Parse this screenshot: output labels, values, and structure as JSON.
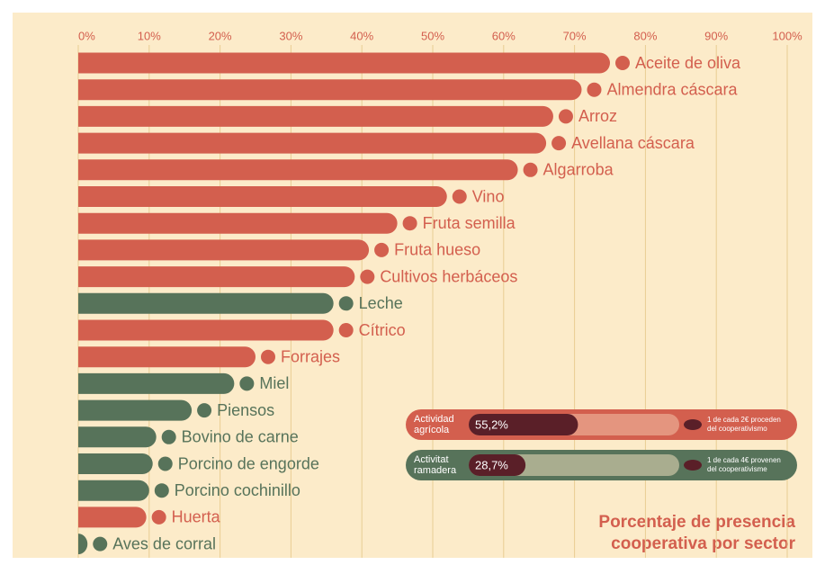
{
  "chart_data": {
    "type": "barh",
    "title_lines": [
      "Porcentaje de presencia",
      "cooperativa por sector"
    ],
    "categories": [
      "Aceite de oliva",
      "Almendra cáscara",
      "Arroz",
      "Avellana cáscara",
      "Algarroba",
      "Vino",
      "Fruta semilla",
      "Fruta hueso",
      "Cultivos herbáceos",
      "Leche",
      "Cítrico",
      "Forrajes",
      "Miel",
      "Piensos",
      "Bovino de carne",
      "Porcino de engorde",
      "Porcino cochinillo",
      "Huerta",
      "Aves de corral"
    ],
    "values": [
      75,
      71,
      67,
      66,
      62,
      52,
      45,
      41,
      39,
      36,
      36,
      25,
      22,
      16,
      11,
      10.5,
      10,
      9.6,
      1.3
    ],
    "colors": [
      "#d35f4e",
      "#d35f4e",
      "#d35f4e",
      "#d35f4e",
      "#d35f4e",
      "#d35f4e",
      "#d35f4e",
      "#d35f4e",
      "#d35f4e",
      "#57735a",
      "#d35f4e",
      "#d35f4e",
      "#57735a",
      "#57735a",
      "#57735a",
      "#57735a",
      "#57735a",
      "#d35f4e",
      "#57735a"
    ],
    "xlim": [
      0,
      100
    ],
    "xticks": [
      {
        "value": 0,
        "label": "0%"
      },
      {
        "value": 10,
        "label": "10%"
      },
      {
        "value": 20,
        "label": "20%"
      },
      {
        "value": 30,
        "label": "30%"
      },
      {
        "value": 40,
        "label": "40%"
      },
      {
        "value": 50,
        "label": "50%"
      },
      {
        "value": 60,
        "label": "60%"
      },
      {
        "value": 70,
        "label": "70%"
      },
      {
        "value": 80,
        "label": "80%"
      },
      {
        "value": 90,
        "label": "90%"
      },
      {
        "value": 100,
        "label": "100%"
      }
    ],
    "grid": true,
    "summary": [
      {
        "name_lines": [
          "Actividad",
          "agrícola"
        ],
        "value": 55.2,
        "value_label": "55,2%",
        "note_lines": [
          "1 de cada 2€ proceden",
          "del cooperativismo"
        ],
        "color": "#d35f4e",
        "track": "#e4957f"
      },
      {
        "name_lines": [
          "Activitat",
          "ramadera"
        ],
        "value": 28.7,
        "value_label": "28,7%",
        "note_lines": [
          "1 de cada 4€ provenen",
          "del cooperativisme"
        ],
        "color": "#57735a",
        "track": "#a9ad8f"
      }
    ]
  }
}
